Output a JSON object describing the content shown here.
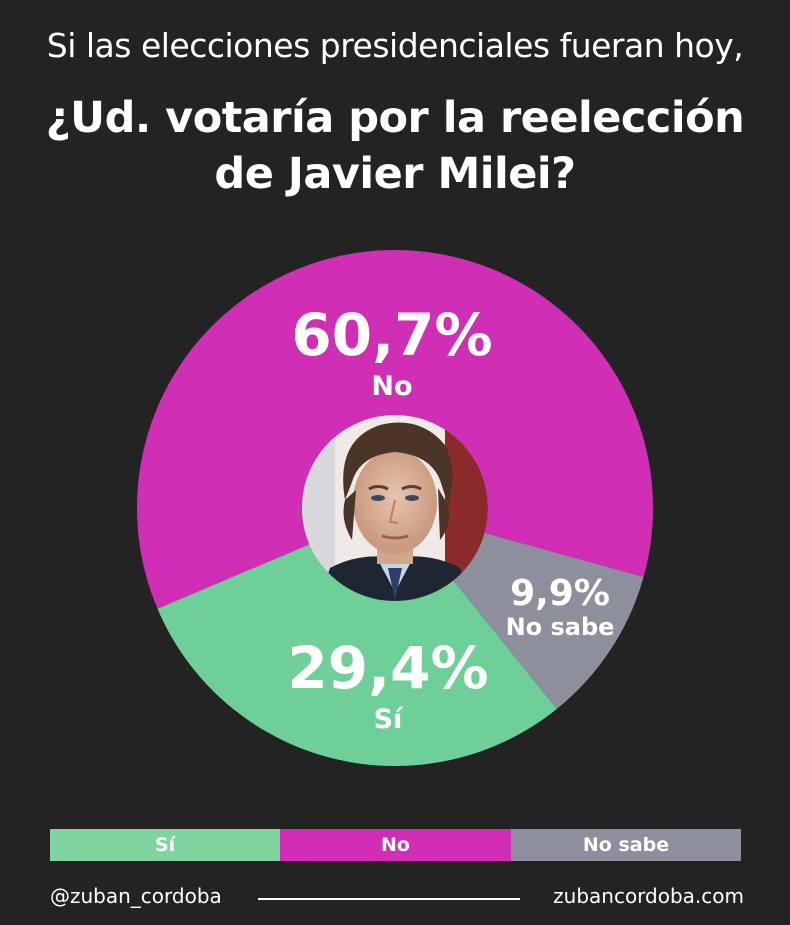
{
  "header": {
    "subtitle": "Si las elecciones presidenciales fueran hoy,",
    "title_line1": "¿Ud. votaría por la reelección",
    "title_line2": "de Javier Milei?"
  },
  "chart_data": {
    "type": "pie",
    "title": "¿Ud. votaría por la reelección de Javier Milei?",
    "subtitle": "Si las elecciones presidenciales fueran hoy,",
    "slices": [
      {
        "label": "No",
        "value": 60.7,
        "display": "60,7%",
        "color": "#cf2eb5"
      },
      {
        "label": "No sabe",
        "value": 9.9,
        "display": "9,9%",
        "color": "#8e8f9d"
      },
      {
        "label": "Sí",
        "value": 29.4,
        "display": "29,4%",
        "color": "#6ecf98"
      }
    ],
    "legend": [
      "Sí",
      "No",
      "No sabe"
    ],
    "legend_position": "bottom"
  },
  "legend": {
    "items": [
      {
        "label": "Sí",
        "color": "#80d4a0"
      },
      {
        "label": "No",
        "color": "#cf2eb5"
      },
      {
        "label": "No sabe",
        "color": "#8e8f9d"
      }
    ]
  },
  "center_photo": {
    "icon": "portrait-photo"
  },
  "footer": {
    "handle": "@zuban_cordoba",
    "website": "zubancordoba.com"
  }
}
